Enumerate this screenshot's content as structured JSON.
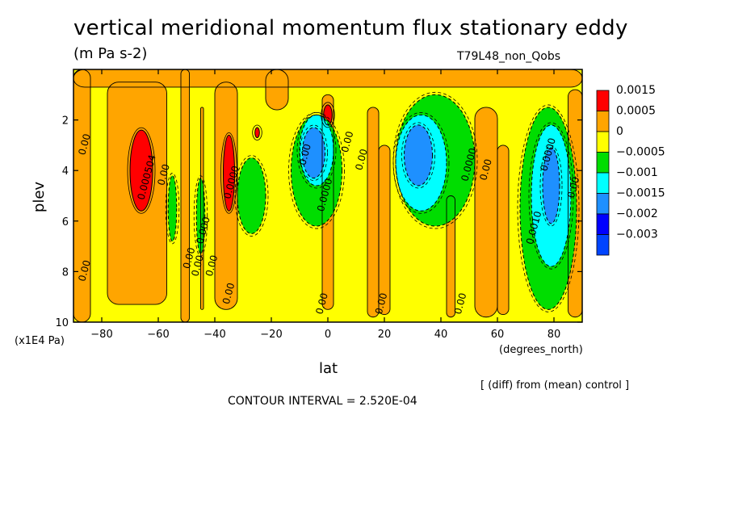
{
  "chart_data": {
    "type": "heatmap",
    "title": "vertical meridional momentum flux stationary eddy",
    "units": "(m Pa s-2)",
    "run_label": "T79L48_non_Qobs",
    "xlabel": "lat",
    "xunits": "(degrees_north)",
    "ylabel": "plev",
    "yunits": "(x1E4 Pa)",
    "xlim": [
      -90,
      90
    ],
    "ylim": [
      0,
      10
    ],
    "y_reversed": true,
    "x_ticks": [
      -80,
      -60,
      -40,
      -20,
      0,
      20,
      40,
      60,
      80
    ],
    "x_tick_labels": [
      "−80",
      "−60",
      "−40",
      "−20",
      "0",
      "20",
      "40",
      "60",
      "80"
    ],
    "y_ticks": [
      2,
      4,
      6,
      8,
      10
    ],
    "y_tick_labels": [
      "2",
      "4",
      "6",
      "8",
      "10"
    ],
    "note": "[ (diff) from (mean) control ]",
    "contour_interval": "CONTOUR INTERVAL = 2.520E-04",
    "legend": {
      "labels": [
        "0.0015",
        "0.0005",
        "0",
        "−0.0005",
        "−0.001",
        "−0.0015",
        "−0.002",
        "−0.003"
      ],
      "colors": [
        "#ff0000",
        "#ffa500",
        "#ffff00",
        "#00dd00",
        "#00ffff",
        "#1e90ff",
        "#0000ff",
        "#0044ff"
      ]
    },
    "palette": {
      "red": "#ff0000",
      "orange": "#ffa500",
      "yellow": "#ffff00",
      "green": "#00dd00",
      "cyan": "#00ffff",
      "lightblue": "#1e90ff",
      "blue": "#1e73ff"
    },
    "regions": [
      {
        "level": "red",
        "lat_center": -66,
        "plev_center": 4.0,
        "lat_halfwidth": 4,
        "plev_halfextent": 1.6
      },
      {
        "level": "red",
        "lat_center": -35,
        "plev_center": 4.1,
        "lat_halfwidth": 2,
        "plev_halfextent": 1.5
      },
      {
        "level": "red",
        "lat_center": 0,
        "plev_center": 1.8,
        "lat_halfwidth": 1.5,
        "plev_halfextent": 0.4
      },
      {
        "level": "red",
        "lat_center": -25,
        "plev_center": 2.5,
        "lat_halfwidth": 0.8,
        "plev_halfextent": 0.2
      },
      {
        "level": "green",
        "lat_center": -55,
        "plev_center": 5.5,
        "lat_halfwidth": 1.5,
        "plev_halfextent": 1.3
      },
      {
        "level": "green",
        "lat_center": -45,
        "plev_center": 5.8,
        "lat_halfwidth": 1.5,
        "plev_halfextent": 1.5
      },
      {
        "level": "green",
        "lat_center": -27,
        "plev_center": 5.0,
        "lat_halfwidth": 5,
        "plev_halfextent": 1.5
      },
      {
        "level": "green",
        "lat_center": -4,
        "plev_center": 4.0,
        "lat_halfwidth": 9,
        "plev_halfextent": 2.2
      },
      {
        "level": "cyan",
        "lat_center": -4,
        "plev_center": 3.2,
        "lat_halfwidth": 6,
        "plev_halfextent": 1.4
      },
      {
        "level": "lightblue",
        "lat_center": -5,
        "plev_center": 3.3,
        "lat_halfwidth": 4,
        "plev_halfextent": 1.0
      },
      {
        "level": "green",
        "lat_center": 38,
        "plev_center": 3.6,
        "lat_halfwidth": 14,
        "plev_halfextent": 2.6
      },
      {
        "level": "cyan",
        "lat_center": 33,
        "plev_center": 3.7,
        "lat_halfwidth": 9,
        "plev_halfextent": 1.9
      },
      {
        "level": "lightblue",
        "lat_center": 32,
        "plev_center": 3.4,
        "lat_halfwidth": 5,
        "plev_halfextent": 1.2
      },
      {
        "level": "green",
        "lat_center": 78,
        "plev_center": 5.5,
        "lat_halfwidth": 10,
        "plev_halfextent": 4.0
      },
      {
        "level": "cyan",
        "lat_center": 79,
        "plev_center": 5.0,
        "lat_halfwidth": 7,
        "plev_halfextent": 2.8
      },
      {
        "level": "lightblue",
        "lat_center": 79,
        "plev_center": 4.6,
        "lat_halfwidth": 3,
        "plev_halfextent": 1.5
      }
    ],
    "contour_labels": [
      {
        "text": "0.00",
        "lat": -85,
        "plev": 3.0
      },
      {
        "text": "0.00",
        "lat": -85,
        "plev": 8.0
      },
      {
        "text": "0.000504",
        "lat": -63,
        "plev": 4.3
      },
      {
        "text": "0.00",
        "lat": -57,
        "plev": 4.2
      },
      {
        "text": "0.00",
        "lat": -48,
        "plev": 7.5
      },
      {
        "text": "0.00",
        "lat": -45,
        "plev": 7.8
      },
      {
        "text": "0.000",
        "lat": -43,
        "plev": 6.4
      },
      {
        "text": "0.00",
        "lat": -40,
        "plev": 7.8
      },
      {
        "text": "0.00",
        "lat": -34,
        "plev": 8.9
      },
      {
        "text": "0.0000",
        "lat": -33,
        "plev": 4.5
      },
      {
        "text": "0.00",
        "lat": -7,
        "plev": 3.4
      },
      {
        "text": "0.00",
        "lat": 8,
        "plev": 2.9
      },
      {
        "text": "0.00",
        "lat": 13,
        "plev": 3.6
      },
      {
        "text": "0.0000",
        "lat": 0,
        "plev": 5.0
      },
      {
        "text": "0.00",
        "lat": -1,
        "plev": 9.3
      },
      {
        "text": "0.00",
        "lat": 20,
        "plev": 9.3
      },
      {
        "text": "0.0000",
        "lat": 51,
        "plev": 3.8
      },
      {
        "text": "0.00",
        "lat": 57,
        "plev": 4.0
      },
      {
        "text": "0.00",
        "lat": 48,
        "plev": 9.3
      },
      {
        "text": "0.0000",
        "lat": 79,
        "plev": 3.4
      },
      {
        "text": "0.0010",
        "lat": 74,
        "plev": 6.3
      },
      {
        "text": "0.00",
        "lat": 88,
        "plev": 4.7
      }
    ]
  }
}
